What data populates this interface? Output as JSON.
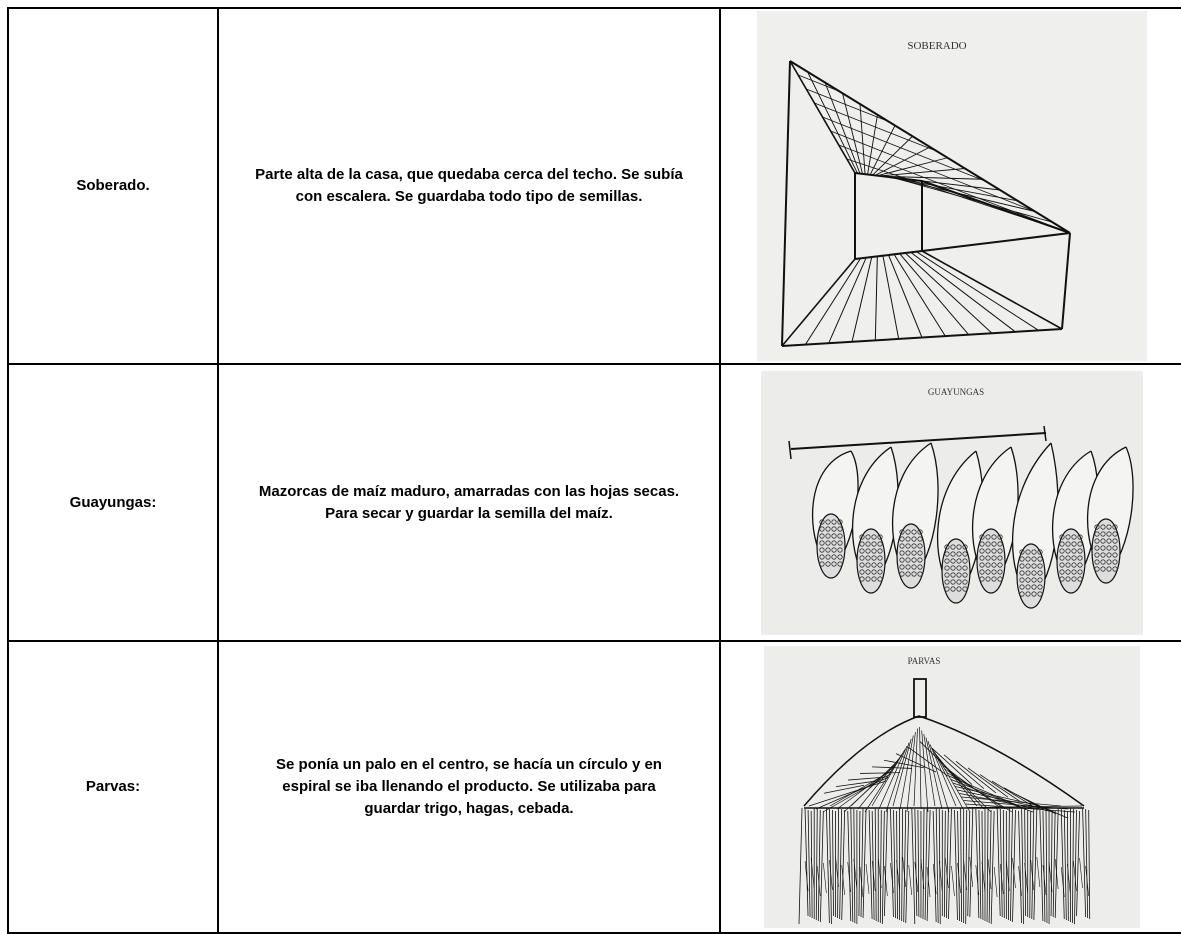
{
  "table": {
    "rows": [
      [
        "Soberado.",
        "Parte alta de la casa, que quedaba cerca del techo. Se subía con escalera. Se guardaba todo tipo de semillas.",
        "SOBERADO"
      ],
      [
        "Guayungas:",
        "Mazorcas de maíz maduro, amarradas con las hojas secas. Para secar y guardar la semilla del maíz.",
        "GUAYUNGAS"
      ],
      [
        "Parvas:",
        "Se ponía un palo en el centro, se hacía un círculo y en espiral se iba llenando el producto. Se utilizaba para guardar trigo, hagas, cebada.",
        "PARVAS"
      ]
    ]
  }
}
